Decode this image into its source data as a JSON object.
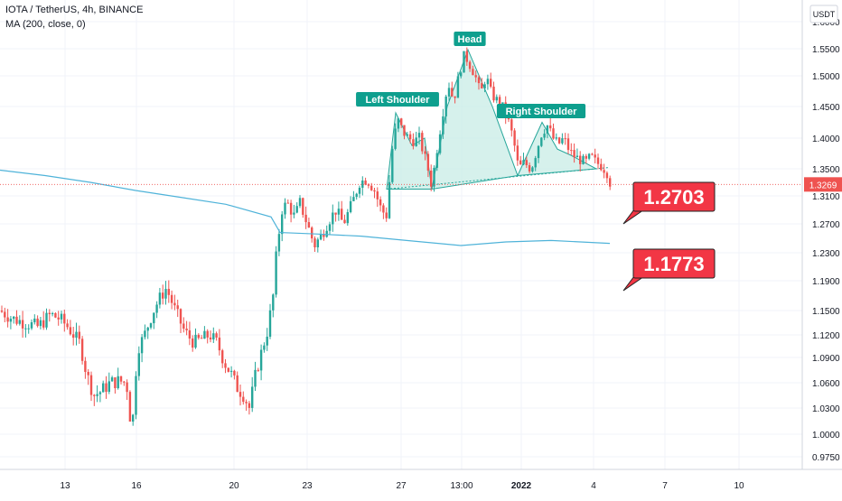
{
  "header": {
    "symbol_line": "IOTA / TetherUS, 4h, BINANCE",
    "indicator_line": "MA (200, close, 0)"
  },
  "chart_data": {
    "type": "candlestick",
    "currency_label": "USDT",
    "current_price_label": "1.3269",
    "current_price": 1.3269,
    "y_ticks": [
      "1.6000",
      "1.5500",
      "1.5000",
      "1.4500",
      "1.4000",
      "1.3500",
      "1.3100",
      "1.2700",
      "1.2300",
      "1.1900",
      "1.1500",
      "1.1200",
      "1.0900",
      "1.0600",
      "1.0300",
      "1.0000",
      "0.9750"
    ],
    "y_tick_values": [
      1.6,
      1.55,
      1.5,
      1.45,
      1.4,
      1.35,
      1.31,
      1.27,
      1.23,
      1.19,
      1.15,
      1.12,
      1.09,
      1.06,
      1.03,
      1.0,
      0.975
    ],
    "x_ticks": [
      "13",
      "16",
      "20",
      "23",
      "27",
      "13:00",
      "2022",
      "4",
      "7",
      "10"
    ],
    "pattern_labels": {
      "left_shoulder": "Left Shoulder",
      "head": "Head",
      "right_shoulder": "Right Shoulder"
    },
    "targets": [
      "1.2703",
      "1.1773"
    ],
    "colors": {
      "up": "#26a69a",
      "down": "#ef5350",
      "ma": "#4fb3d9",
      "pattern_fill": "#c8ece6",
      "label_bg": "#0e9f8e",
      "target_bg": "#f23645"
    },
    "ma_points": [
      [
        0,
        1.348
      ],
      [
        50,
        1.34
      ],
      [
        100,
        1.33
      ],
      [
        150,
        1.318
      ],
      [
        200,
        1.308
      ],
      [
        250,
        1.298
      ],
      [
        300,
        1.28
      ],
      [
        310,
        1.258
      ],
      [
        350,
        1.256
      ],
      [
        400,
        1.253
      ],
      [
        450,
        1.247
      ],
      [
        510,
        1.24
      ],
      [
        560,
        1.245
      ],
      [
        610,
        1.247
      ],
      [
        675,
        1.243
      ]
    ],
    "pattern_points": [
      [
        428,
        1.32
      ],
      [
        438,
        1.44
      ],
      [
        456,
        1.388
      ],
      [
        470,
        1.4
      ],
      [
        478,
        1.32
      ],
      [
        495,
        1.45
      ],
      [
        518,
        1.548
      ],
      [
        545,
        1.45
      ],
      [
        573,
        1.34
      ],
      [
        600,
        1.425
      ],
      [
        617,
        1.382
      ],
      [
        632,
        1.372
      ],
      [
        660,
        1.35
      ],
      [
        573,
        1.34
      ],
      [
        478,
        1.32
      ],
      [
        428,
        1.32
      ]
    ],
    "neckline": [
      [
        428,
        1.32
      ],
      [
        673,
        1.352
      ]
    ]
  }
}
